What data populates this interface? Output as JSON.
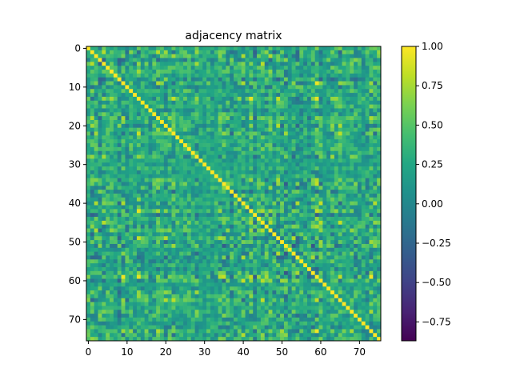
{
  "chart_data": {
    "type": "heatmap",
    "title": "adjacency matrix",
    "xlabel": "",
    "ylabel": "",
    "size": 76,
    "diagonal_value": 1.0,
    "value_range": [
      -0.87,
      1.0
    ],
    "x_ticks": [
      0,
      10,
      20,
      30,
      40,
      50,
      60,
      70
    ],
    "y_ticks": [
      0,
      10,
      20,
      30,
      40,
      50,
      60,
      70
    ],
    "colormap": "viridis",
    "colorbar_ticks": [
      1.0,
      0.75,
      0.5,
      0.25,
      0.0,
      -0.25,
      -0.5,
      -0.75
    ],
    "colorbar_labels": [
      "1.00",
      "0.75",
      "0.50",
      "0.25",
      "0.00",
      "−0.25",
      "−0.50",
      "−0.75"
    ]
  }
}
